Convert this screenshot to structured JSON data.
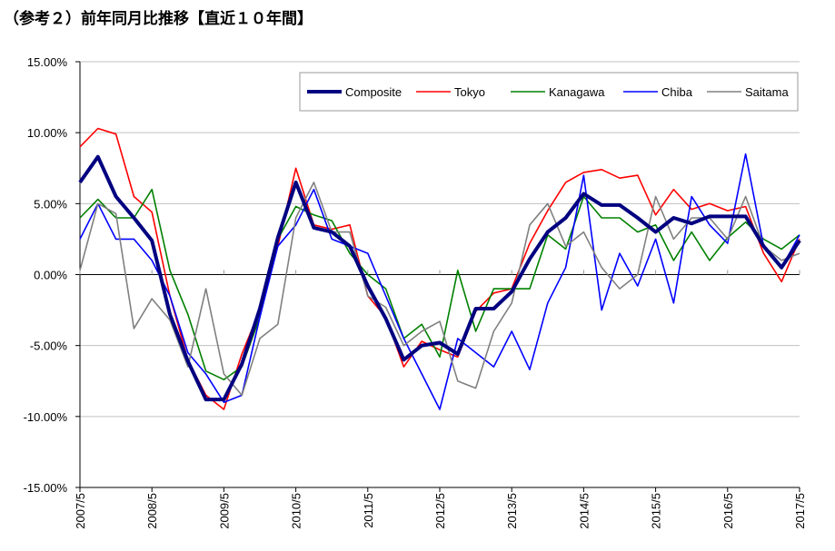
{
  "title": "（参考２）前年同月比推移【直近１０年間】",
  "chart_data": {
    "type": "line",
    "title": "",
    "xlabel": "",
    "ylabel": "",
    "ylim": [
      -15,
      15
    ],
    "y_ticks": [
      "15.00%",
      "10.00%",
      "5.00%",
      "0.00%",
      "-5.00%",
      "-10.00%",
      "-15.00%"
    ],
    "y_tick_values": [
      15,
      10,
      5,
      0,
      -5,
      -10,
      -15
    ],
    "x_ticks": [
      "2007/5",
      "2008/5",
      "2009/5",
      "2010/5",
      "2011/5",
      "2012/5",
      "2013/5",
      "2014/5",
      "2015/5",
      "2016/5",
      "2017/5"
    ],
    "grid": "horizontal",
    "legend_position": "top-right",
    "x": [
      "2007/5",
      "2007/8",
      "2007/11",
      "2008/2",
      "2008/5",
      "2008/8",
      "2008/11",
      "2009/2",
      "2009/5",
      "2009/8",
      "2009/11",
      "2010/2",
      "2010/5",
      "2010/8",
      "2010/11",
      "2011/2",
      "2011/5",
      "2011/8",
      "2011/11",
      "2012/2",
      "2012/5",
      "2012/8",
      "2012/11",
      "2013/2",
      "2013/5",
      "2013/8",
      "2013/11",
      "2014/2",
      "2014/5",
      "2014/8",
      "2014/11",
      "2015/2",
      "2015/5",
      "2015/8",
      "2015/11",
      "2016/2",
      "2016/5",
      "2016/8",
      "2016/11",
      "2017/2",
      "2017/5"
    ],
    "series": [
      {
        "name": "Composite",
        "color": "#000080",
        "values": [
          6.5,
          8.3,
          5.5,
          4.0,
          2.4,
          -2.8,
          -6.1,
          -8.8,
          -8.8,
          -6.3,
          -2.4,
          2.6,
          6.5,
          3.3,
          3.0,
          2.0,
          -0.8,
          -3.1,
          -6.0,
          -5.0,
          -4.8,
          -5.6,
          -2.4,
          -2.4,
          -1.2,
          1.1,
          3.0,
          4.0,
          5.7,
          4.9,
          4.9,
          4.0,
          3.0,
          4.0,
          3.6,
          4.1,
          4.1,
          4.1,
          2.0,
          0.5,
          2.4
        ]
      },
      {
        "name": "Tokyo",
        "color": "#ff0000",
        "values": [
          9.0,
          10.3,
          9.9,
          5.5,
          4.4,
          -1.5,
          -6.0,
          -8.5,
          -9.5,
          -5.6,
          -2.5,
          2.0,
          7.5,
          3.5,
          3.2,
          3.5,
          -1.5,
          -3.0,
          -6.5,
          -4.7,
          -5.3,
          -5.8,
          -2.6,
          -1.3,
          -1.0,
          2.2,
          4.5,
          6.5,
          7.2,
          7.4,
          6.8,
          7.0,
          4.2,
          6.0,
          4.6,
          5.0,
          4.5,
          4.8,
          1.5,
          -0.5,
          2.5
        ]
      },
      {
        "name": "Kanagawa",
        "color": "#008000",
        "values": [
          4.0,
          5.3,
          4.0,
          4.0,
          6.0,
          0.3,
          -2.8,
          -6.8,
          -7.4,
          -6.5,
          -3.0,
          2.5,
          4.8,
          4.2,
          3.8,
          1.5,
          0.0,
          -1.0,
          -4.5,
          -3.5,
          -5.8,
          0.3,
          -4.0,
          -1.0,
          -1.0,
          -1.0,
          2.8,
          1.8,
          5.5,
          4.0,
          4.0,
          3.0,
          3.5,
          1.0,
          3.0,
          1.0,
          2.6,
          3.7,
          2.5,
          1.8,
          2.8
        ]
      },
      {
        "name": "Chiba",
        "color": "#0000ff",
        "values": [
          2.5,
          5.0,
          2.5,
          2.5,
          1.0,
          -1.5,
          -5.5,
          -7.0,
          -9.0,
          -8.5,
          -3.0,
          2.0,
          3.5,
          6.0,
          2.5,
          2.0,
          1.5,
          -1.5,
          -4.5,
          -7.0,
          -9.5,
          -4.5,
          -5.5,
          -6.5,
          -4.0,
          -6.7,
          -2.0,
          0.5,
          7.0,
          -2.5,
          1.5,
          -0.8,
          2.5,
          -2.0,
          5.5,
          3.5,
          2.2,
          8.5,
          2.0,
          0.5,
          2.8
        ]
      },
      {
        "name": "Saitama",
        "color": "#808080",
        "values": [
          0.3,
          5.0,
          4.3,
          -3.8,
          -1.7,
          -3.2,
          -6.5,
          -1.0,
          -7.0,
          -8.5,
          -4.5,
          -3.5,
          4.0,
          6.5,
          3.0,
          3.0,
          -1.5,
          -2.3,
          -5.0,
          -4.0,
          -3.3,
          -7.5,
          -8.0,
          -4.0,
          -2.0,
          3.5,
          5.0,
          2.0,
          3.0,
          0.5,
          -1.0,
          0.0,
          5.5,
          2.5,
          4.0,
          4.0,
          2.5,
          5.5,
          2.0,
          1.0,
          1.5
        ]
      }
    ]
  }
}
